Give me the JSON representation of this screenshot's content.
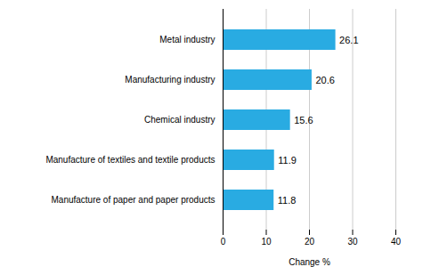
{
  "chart_data": {
    "type": "bar",
    "orientation": "horizontal",
    "categories": [
      "Manufacture of paper and paper products",
      "Manufacture of textiles and textile products",
      "Chemical industry",
      "Manufacturing industry",
      "Metal industry"
    ],
    "values": [
      11.8,
      11.9,
      15.6,
      20.6,
      26.1
    ],
    "color": "#29ABE2",
    "xlabel": "Change %",
    "xlim": [
      0,
      40
    ],
    "xticks": [
      0,
      10,
      20,
      30,
      40
    ],
    "grid": true,
    "data_labels": true
  }
}
